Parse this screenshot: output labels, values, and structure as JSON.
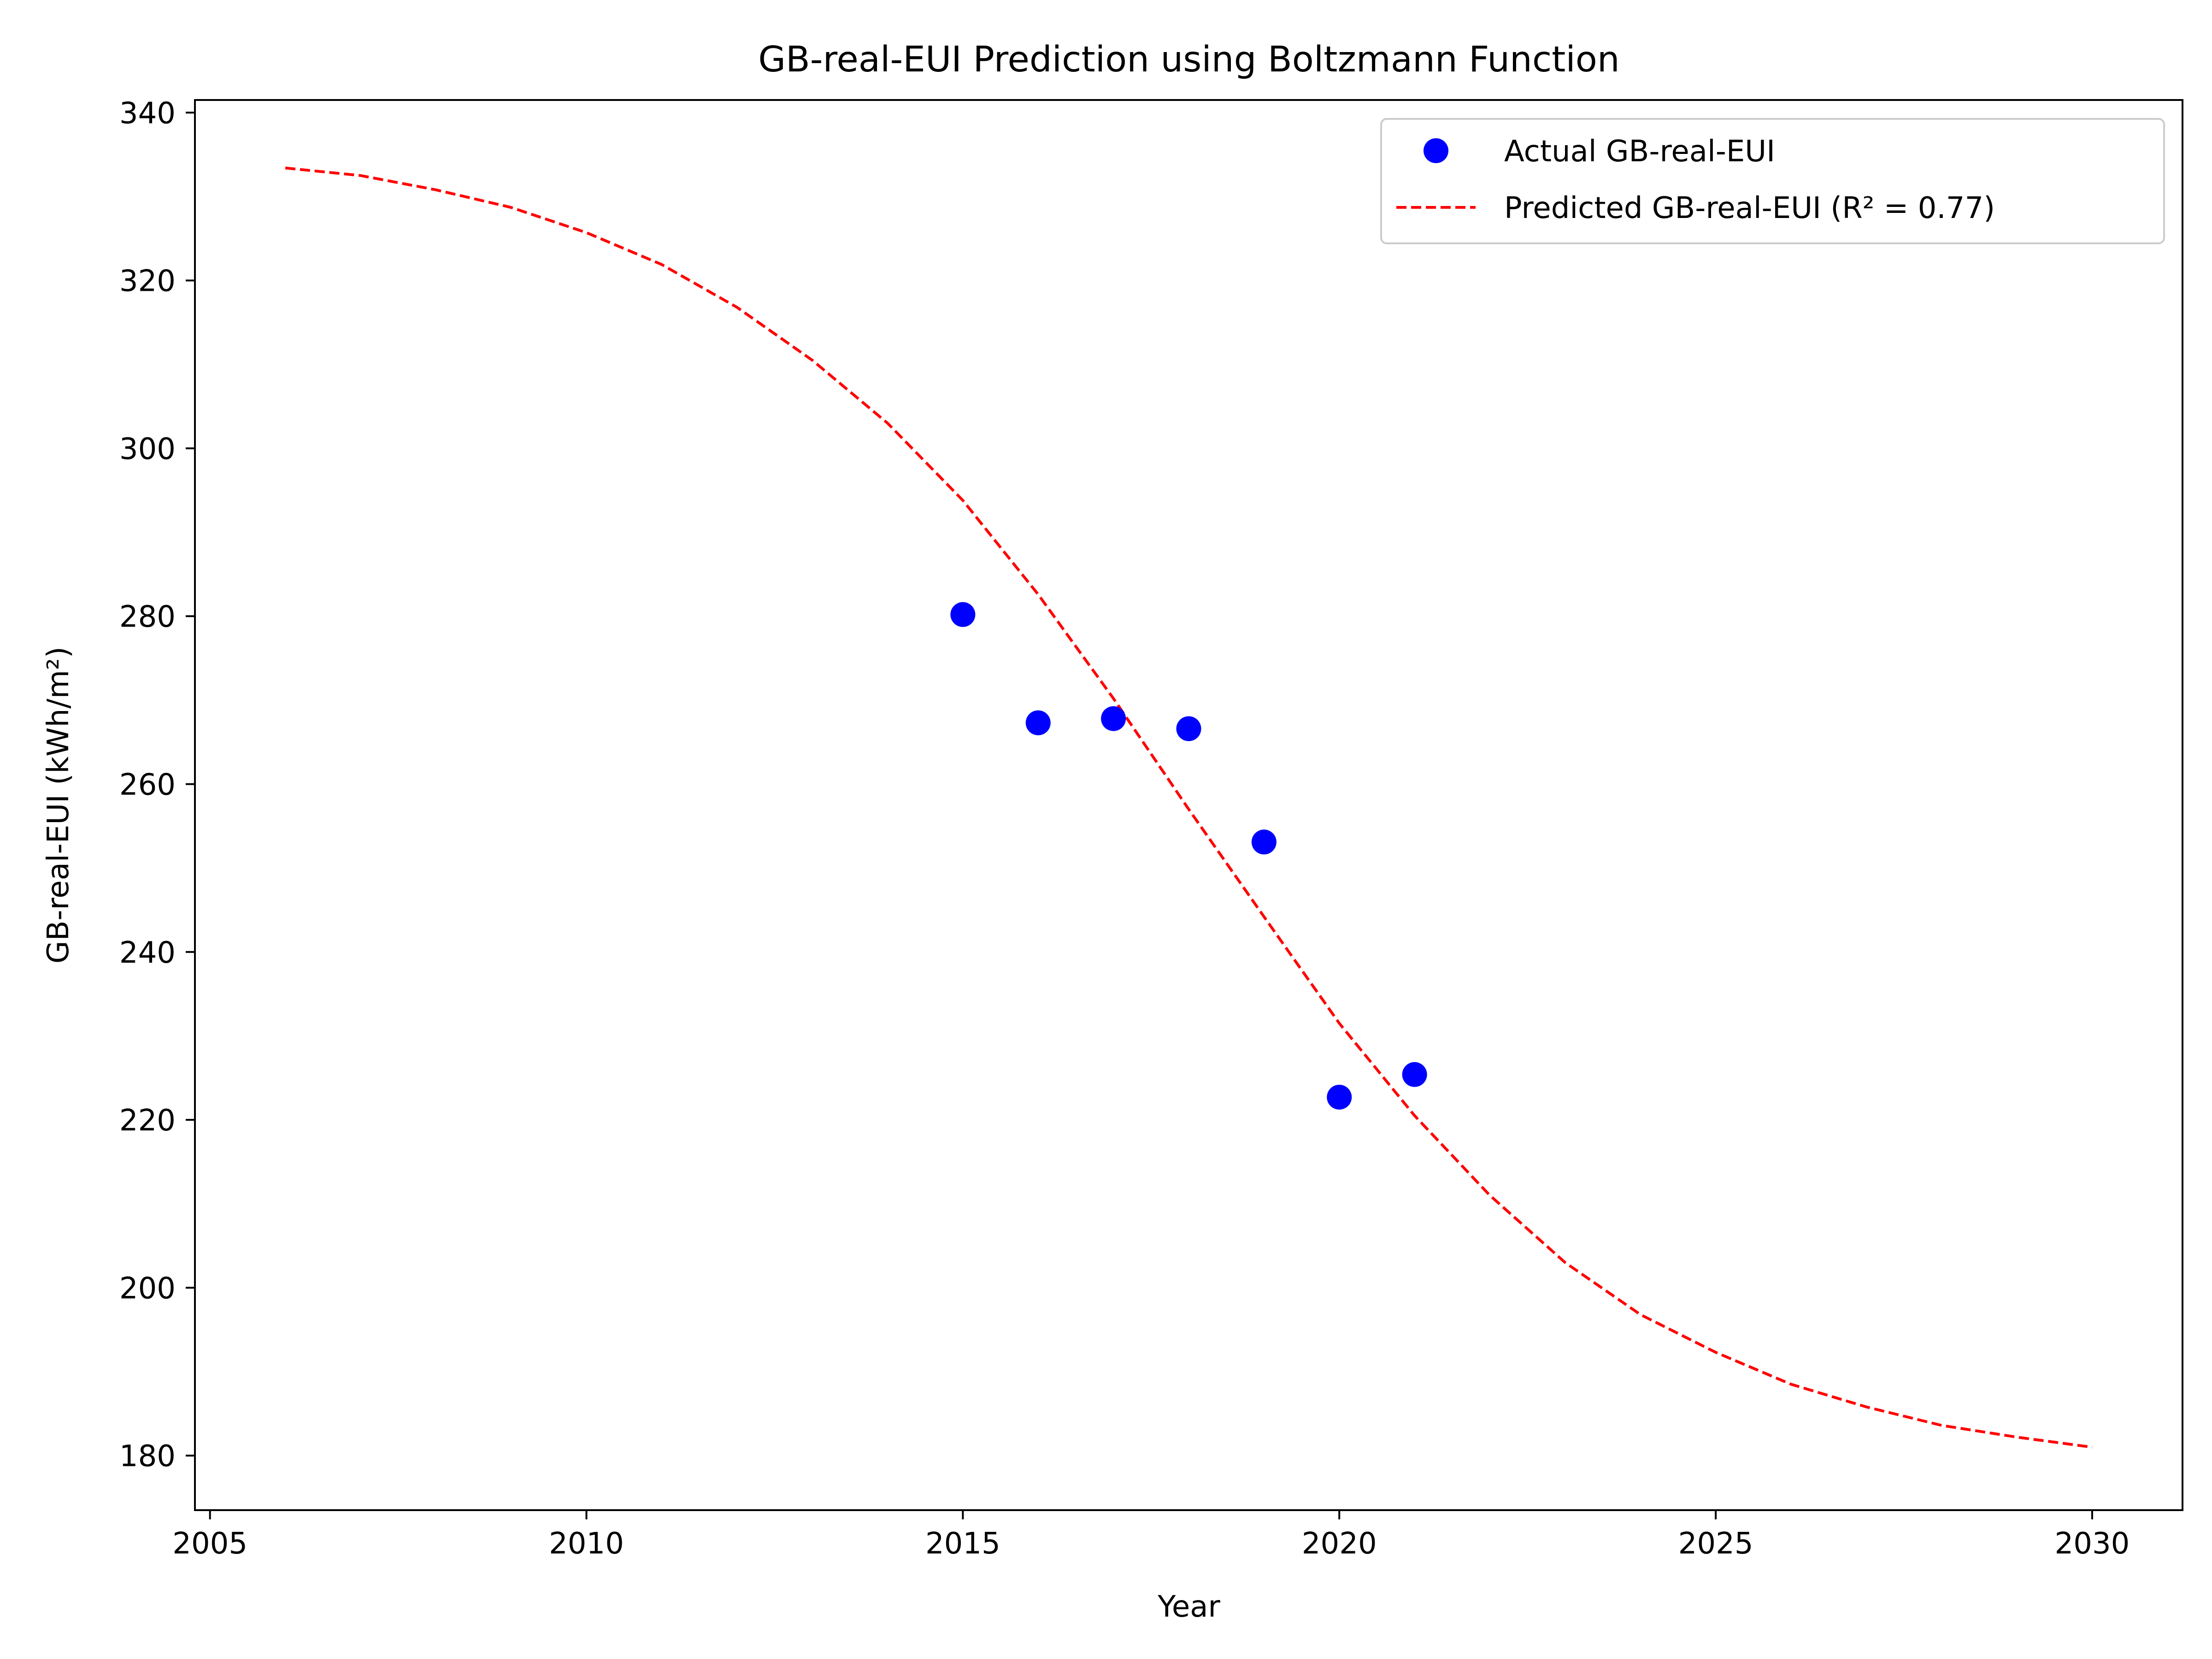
{
  "chart_data": {
    "type": "scatter",
    "title": "GB-real-EUI Prediction using Boltzmann Function",
    "xlabel": "Year",
    "ylabel": "GB-real-EUI (kWh/m²)",
    "xlim": [
      2004.8,
      2031.2
    ],
    "ylim": [
      173.5,
      341.5
    ],
    "xticks": [
      2005,
      2010,
      2015,
      2020,
      2025,
      2030
    ],
    "yticks": [
      180,
      200,
      220,
      240,
      260,
      280,
      300,
      320,
      340
    ],
    "grid": false,
    "legend_position": "upper right",
    "series": [
      {
        "name": "Actual GB-real-EUI",
        "kind": "scatter",
        "color": "#0000ff",
        "marker": "circle",
        "x": [
          2015,
          2016,
          2017,
          2018,
          2019,
          2020,
          2021
        ],
        "y": [
          280.2,
          267.3,
          267.8,
          266.6,
          253.1,
          222.7,
          225.4
        ]
      },
      {
        "name": "Predicted GB-real-EUI (R² = 0.77)",
        "kind": "line",
        "style": "dashed",
        "color": "#ff0000",
        "x": [
          2006,
          2007,
          2008,
          2009,
          2010,
          2011,
          2012,
          2013,
          2014,
          2015,
          2016,
          2017,
          2018,
          2019,
          2020,
          2021,
          2022,
          2023,
          2024,
          2025,
          2026,
          2027,
          2028,
          2029,
          2030
        ],
        "y": [
          333.4,
          332.5,
          330.8,
          328.7,
          325.7,
          321.9,
          316.8,
          310.5,
          303.0,
          293.8,
          282.6,
          270.2,
          257.0,
          244.2,
          231.5,
          220.5,
          211.0,
          203.0,
          196.8,
          192.3,
          188.5,
          185.8,
          183.6,
          182.2,
          181.0
        ]
      }
    ]
  }
}
